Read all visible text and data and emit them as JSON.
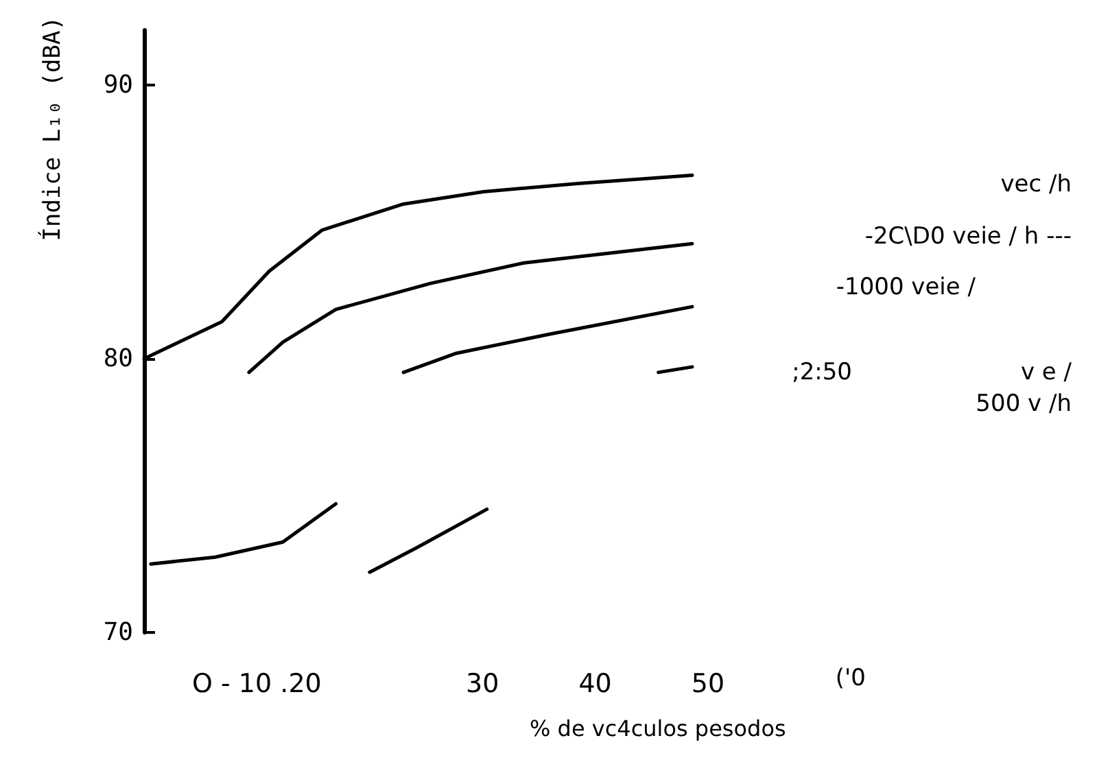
{
  "chart_data": {
    "type": "line",
    "xlabel": "% de vc4culos pesodos",
    "ylabel": "Índice L₁₀ (dBA)",
    "xlim": [
      0,
      50
    ],
    "ylim": [
      70,
      92
    ],
    "xticks": [
      {
        "value": 10,
        "label": "O - 10 .20"
      },
      30,
      40,
      50
    ],
    "yticks": [
      70,
      80,
      90
    ],
    "series": [
      {
        "color": "#000000",
        "x": [
          0,
          6.9,
          11.1,
          15.8,
          23,
          30.1,
          38.5,
          48.6
        ],
        "values": [
          80.0,
          81.35,
          83.2,
          84.7,
          85.65,
          86.1,
          86.4,
          86.7
        ]
      },
      {
        "color": "#000000",
        "x": [
          9.3,
          12.3,
          17,
          25.4,
          33.7,
          48.6
        ],
        "values": [
          79.5,
          80.6,
          81.8,
          82.75,
          83.5,
          84.2
        ]
      },
      {
        "color": "#000000",
        "x": [
          23,
          27.7,
          36,
          48.6
        ],
        "values": [
          79.5,
          80.2,
          80.9,
          81.9
        ]
      },
      {
        "color": "#000000",
        "x": [
          45.6,
          48.6
        ],
        "values": [
          79.5,
          79.7
        ]
      },
      {
        "color": "#000000",
        "x": [
          0.6,
          6.3,
          12.3,
          17
        ],
        "values": [
          72.5,
          72.75,
          73.3,
          74.7
        ]
      },
      {
        "color": "#000000",
        "x": [
          20,
          24.2,
          30.4
        ],
        "values": [
          72.2,
          73.1,
          74.5
        ]
      }
    ],
    "annotations": [
      "vec /h",
      "-2C\\D0 veie / h ---",
      "-1000 veie /",
      ";2:50",
      "v e /",
      "500 v /h",
      "('0"
    ],
    "grid": false,
    "marker": "none",
    "line_style": "solid"
  }
}
